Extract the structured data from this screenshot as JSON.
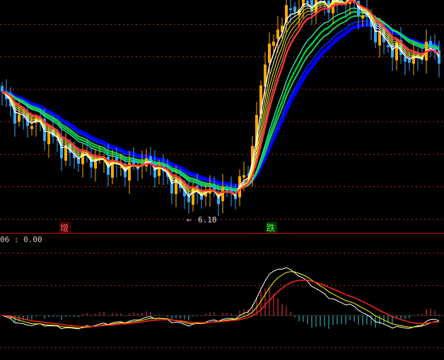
{
  "chart_data": [
    {
      "type": "candlestick",
      "title": "",
      "series": [
        {
          "name": "",
          "color": "#ffffff"
        },
        {
          "name": "",
          "color": "#ffff00"
        },
        {
          "name": "",
          "color": "#ff3333"
        },
        {
          "name": "",
          "color": "#00cc33"
        },
        {
          "name": "",
          "color": "#0000ff"
        }
      ],
      "annotations": {
        "low_label": "6.18",
        "low_arrow": "←",
        "signal_buy": "增",
        "signal_sell": "跌"
      },
      "colors": {
        "background": "#000000",
        "up_candle": "#ffaa00",
        "down_candle": "#33aaff",
        "grid": "#bb2222",
        "divider": "#cc0000",
        "signal_buy_bg": "#440000",
        "signal_sell_bg": "#003300"
      },
      "grid": true
    },
    {
      "type": "macd",
      "readout": "06 : 0.00",
      "colors": {
        "positive_bar": "#ff3333",
        "negative_bar": "#33cccc",
        "dif": "#ffffff",
        "dea": "#ffff00",
        "signal_line": "#ff2222"
      },
      "grid": true
    }
  ]
}
